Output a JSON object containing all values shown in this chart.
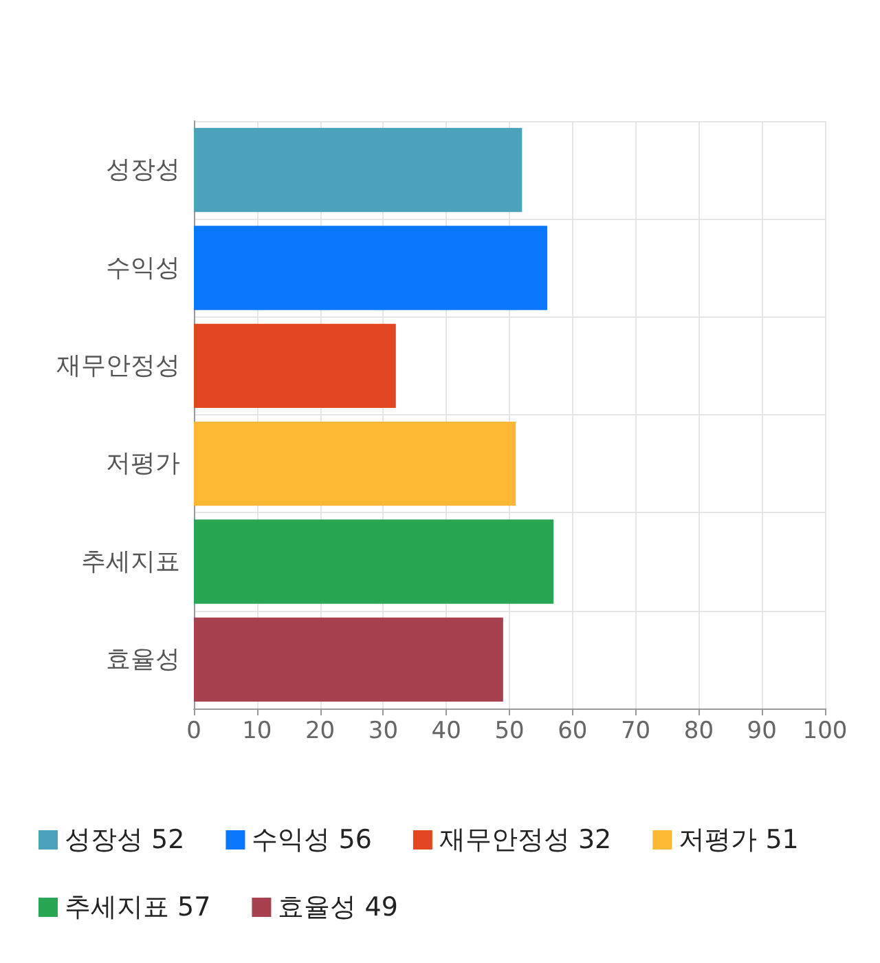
{
  "chart_data": {
    "type": "bar",
    "orientation": "horizontal",
    "stacked": true,
    "categories": [
      "성장성",
      "수익성",
      "재무안정성",
      "저평가",
      "추세지표",
      "효율성"
    ],
    "series": [
      {
        "name": "성장성 52",
        "color": "#4ba3bb",
        "values": [
          52,
          null,
          null,
          null,
          null,
          null
        ]
      },
      {
        "name": "수익성 56",
        "color": "#0a77fd",
        "values": [
          null,
          56,
          null,
          null,
          null,
          null
        ]
      },
      {
        "name": "재무안정성 32",
        "color": "#e34623",
        "values": [
          null,
          null,
          32,
          null,
          null,
          null
        ]
      },
      {
        "name": "저평가 51",
        "color": "#ffb834",
        "values": [
          null,
          null,
          null,
          51,
          null,
          null
        ]
      },
      {
        "name": "추세지표 57",
        "color": "#28a653",
        "values": [
          null,
          null,
          null,
          null,
          57,
          null
        ]
      },
      {
        "name": "효율성 49",
        "color": "#a8414f",
        "values": [
          null,
          null,
          null,
          null,
          null,
          49
        ]
      }
    ],
    "xlim": [
      0,
      100
    ],
    "xticks": [
      0,
      10,
      20,
      30,
      40,
      50,
      60,
      70,
      80,
      90,
      100
    ],
    "grid": true,
    "legend": "bottom"
  }
}
